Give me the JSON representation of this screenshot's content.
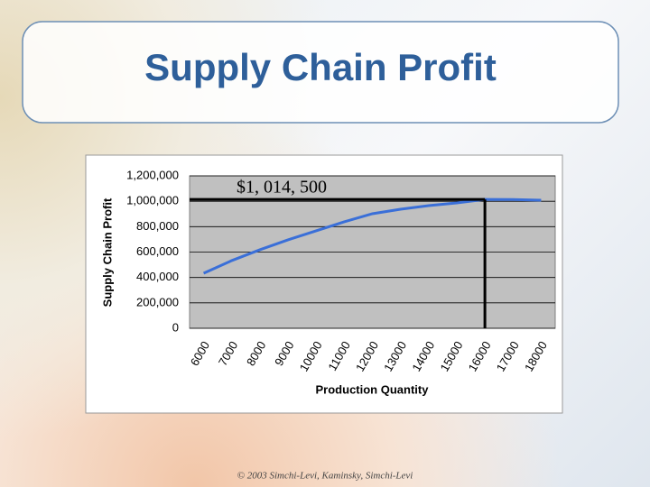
{
  "chart_data": {
    "type": "line",
    "title": "Supply Chain Profit",
    "x_label": "Production Quantity",
    "y_label": "Supply Chain Profit",
    "categories": [
      "6000",
      "7000",
      "8000",
      "9000",
      "10000",
      "11000",
      "12000",
      "13000",
      "14000",
      "15000",
      "16000",
      "17000",
      "18000"
    ],
    "values": [
      433000,
      533000,
      618000,
      696000,
      767000,
      838000,
      902000,
      937000,
      966000,
      987000,
      1014500,
      1014000,
      1008000
    ],
    "color": "#3a6fd8",
    "annotation": "$1, 014, 500",
    "ylim": [
      0,
      1200000
    ],
    "yticks": [
      0,
      {
        "value": 200000,
        "label": "200,000"
      },
      {
        "value": 400000,
        "label": "400,000"
      },
      {
        "value": 600000,
        "label": "600,000"
      },
      {
        "value": 800000,
        "label": "800,000"
      },
      {
        "value": 1000000,
        "label": "1,000,000"
      },
      {
        "value": 1200000,
        "label": "1,200,000"
      }
    ],
    "grid": true
  },
  "footer": "© 2003 Simchi-Levi, Kaminsky, Simchi-Levi"
}
